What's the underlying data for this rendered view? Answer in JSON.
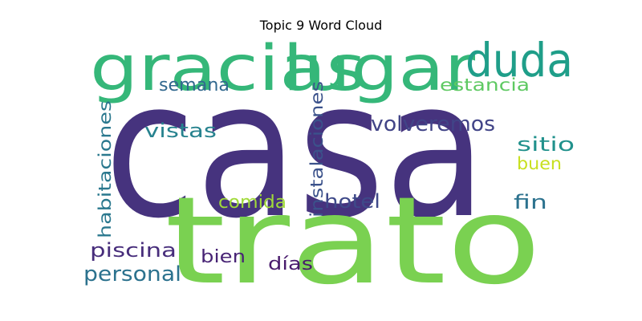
{
  "chart_data": {
    "type": "wordcloud",
    "title": "Topic 9 Word Cloud",
    "words": [
      {
        "text": "casa",
        "weight": 100,
        "color": "#46337e"
      },
      {
        "text": "trato",
        "weight": 90,
        "color": "#7ad151"
      },
      {
        "text": "gracias",
        "weight": 40,
        "color": "#35b779"
      },
      {
        "text": "lugar",
        "weight": 38,
        "color": "#35b779"
      },
      {
        "text": "duda",
        "weight": 36,
        "color": "#1f9e89"
      },
      {
        "text": "volveremos",
        "weight": 16,
        "color": "#414487"
      },
      {
        "text": "estancia",
        "weight": 13,
        "color": "#5ec962"
      },
      {
        "text": "semana",
        "weight": 14,
        "color": "#31688e"
      },
      {
        "text": "vistas",
        "weight": 15,
        "color": "#26828e"
      },
      {
        "text": "habitaciones",
        "weight": 13,
        "color": "#2a788e"
      },
      {
        "text": "instalaciones",
        "weight": 13,
        "color": "#3b528b"
      },
      {
        "text": "sitio",
        "weight": 15,
        "color": "#21918c"
      },
      {
        "text": "buen",
        "weight": 13,
        "color": "#c8e020"
      },
      {
        "text": "hotel",
        "weight": 15,
        "color": "#3e4989"
      },
      {
        "text": "comida",
        "weight": 14,
        "color": "#a0da39"
      },
      {
        "text": "fin",
        "weight": 15,
        "color": "#2c728e"
      },
      {
        "text": "piscina",
        "weight": 15,
        "color": "#472d7b"
      },
      {
        "text": "personal",
        "weight": 17,
        "color": "#2c728e"
      },
      {
        "text": "bien",
        "weight": 14,
        "color": "#482475"
      },
      {
        "text": "días",
        "weight": 14,
        "color": "#481a6c"
      }
    ]
  }
}
